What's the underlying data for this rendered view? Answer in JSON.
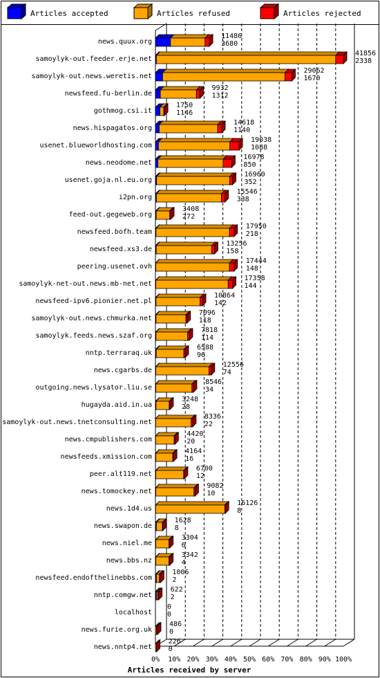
{
  "chart_data": {
    "type": "bar",
    "stacked": true,
    "orientation": "horizontal",
    "xlabel": "Articles received by server",
    "x_ticks": [
      "0%",
      "10%",
      "20%",
      "30%",
      "40%",
      "50%",
      "60%",
      "70%",
      "80%",
      "90%",
      "100%"
    ],
    "xlim": [
      0,
      100
    ],
    "legend_position": "top",
    "grid": true,
    "colors": {
      "accepted": "#0000ff",
      "refused": "#ffa500",
      "rejected": "#ff0000"
    },
    "series": [
      {
        "name": "Articles accepted"
      },
      {
        "name": "Articles refused"
      },
      {
        "name": "Articles rejected"
      }
    ],
    "categories": [
      "news.quux.org",
      "samoylyk-out.feeder.erje.net",
      "samoylyk-out.news.weretis.net",
      "newsfeed.fu-berlin.de",
      "gothmog.csi.it",
      "news.hispagatos.org",
      "usenet.blueworldhosting.com",
      "news.neodome.net",
      "usenet.goja.nl.eu.org",
      "i2pn.org",
      "feed-out.gegeweb.org",
      "newsfeed.bofh.team",
      "newsfeed.xs3.de",
      "peering.usenet.ovh",
      "samoylyk-net-out.news.mb-net.net",
      "newsfeed-ipv6.pionier.net.pl",
      "samoylyk-out.news.chmurka.net",
      "samoylyk.feeds.news.szaf.org",
      "nntp.terraraq.uk",
      "news.cgarbs.de",
      "outgoing.news.lysator.liu.se",
      "hugayda.aid.in.ua",
      "samoylyk-out.news.tnetconsulting.net",
      "news.cmpublishers.com",
      "newsfeeds.xmission.com",
      "peer.alt119.net",
      "news.tomockey.net",
      "news.1d4.us",
      "news.swapon.de",
      "news.niel.me",
      "news.bbs.nz",
      "newsfeed.endofthelinebbs.com",
      "nntp.comgw.net",
      "localhost",
      "news.furie.org.uk",
      "news.nntp4.net"
    ],
    "offered_label": [
      "11486",
      "41856",
      "29062",
      "9932",
      "1750",
      "14618",
      "19038",
      "16978",
      "16960",
      "15546",
      "3408",
      "17950",
      "13256",
      "17444",
      "17358",
      "10864",
      "7096",
      "7818",
      "6588",
      "12556",
      "8546",
      "3248",
      "8336",
      "4420",
      "4164",
      "6700",
      "9082",
      "16126",
      "1628",
      "3304",
      "3342",
      "1006",
      "622",
      "0",
      "486",
      "226"
    ],
    "accepted_label": [
      "3680",
      "2338",
      "1670",
      "1312",
      "1146",
      "1140",
      "1088",
      "850",
      "352",
      "338",
      "272",
      "218",
      "158",
      "148",
      "144",
      "142",
      "118",
      "114",
      "96",
      "74",
      "34",
      "28",
      "22",
      "20",
      "16",
      "12",
      "10",
      "8",
      "8",
      "6",
      "4",
      "2",
      "2",
      "0",
      "0",
      "0"
    ],
    "accepted_pct": [
      8.0,
      0.5,
      3.8,
      2.6,
      2.4,
      2.0,
      1.6,
      1.3,
      0.6,
      0.5,
      0.4,
      0.3,
      0.4,
      0.2,
      0.2,
      0.3,
      0.3,
      0.3,
      0.4,
      0.2,
      0.2,
      0.3,
      0.1,
      0.1,
      0.2,
      0.2,
      0.2,
      0.1,
      0.5,
      0.2,
      0.2,
      0.5,
      0.5,
      0,
      0,
      0
    ],
    "refused_pct": [
      18.4,
      95.4,
      65.1,
      19.2,
      2.0,
      31.1,
      38.0,
      34.7,
      38.9,
      34.6,
      7.1,
      39.1,
      29.5,
      39.2,
      38.5,
      23.4,
      15.9,
      16.8,
      14.7,
      28.3,
      19.2,
      7.0,
      18.9,
      9.8,
      9.0,
      14.8,
      20.3,
      36.8,
      3.2,
      7.0,
      7.0,
      1.5,
      0.7,
      0,
      0.6,
      0.5
    ],
    "rejected_pct": [
      2.3,
      4.1,
      3.7,
      1.9,
      0.4,
      2.2,
      4.9,
      4.6,
      1.5,
      1.9,
      0.6,
      2.4,
      1.5,
      2.4,
      2.3,
      1.3,
      0.6,
      0.9,
      0.7,
      1.2,
      0.8,
      0.4,
      0.8,
      0.5,
      0.4,
      0.4,
      0.6,
      0.3,
      0.2,
      0.4,
      0.4,
      0.7,
      0.5,
      0,
      0.5,
      0.1
    ]
  }
}
